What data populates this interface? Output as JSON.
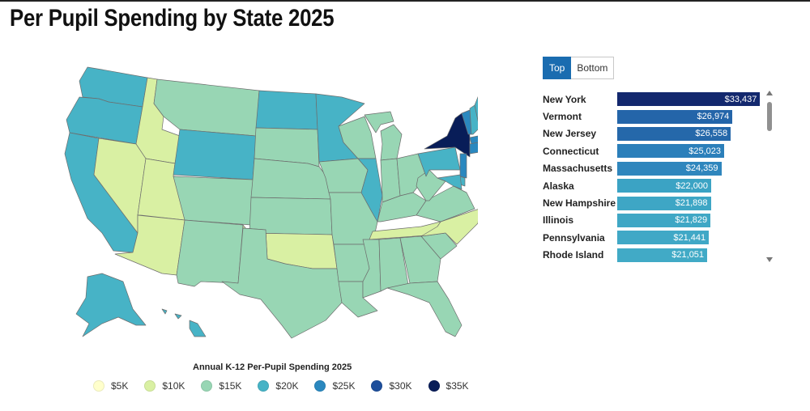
{
  "page": {
    "title": "Per Pupil Spending by State 2025"
  },
  "colors": {
    "s5": "#ffffcc",
    "s10": "#d9f0a3",
    "s15": "#98d6b4",
    "s20": "#47b3c6",
    "s25": "#2a88bf",
    "s30": "#1e4f9b",
    "s35": "#081d58"
  },
  "toggle": {
    "top_label": "Top",
    "bottom_label": "Bottom",
    "selected": "Top"
  },
  "legend": {
    "title": "Annual K-12 Per-Pupil Spending 2025",
    "items": [
      {
        "label": "$5K",
        "color": "#ffffcc"
      },
      {
        "label": "$10K",
        "color": "#d9f0a3"
      },
      {
        "label": "$15K",
        "color": "#98d6b4"
      },
      {
        "label": "$20K",
        "color": "#47b3c6"
      },
      {
        "label": "$25K",
        "color": "#2a88bf"
      },
      {
        "label": "$30K",
        "color": "#1e4f9b"
      },
      {
        "label": "$35K",
        "color": "#081d58"
      }
    ]
  },
  "chart_data": {
    "type": "bar",
    "categories": [
      "New York",
      "Vermont",
      "New Jersey",
      "Connecticut",
      "Massachusetts",
      "Alaska",
      "New Hampshire",
      "Illinois",
      "Pennsylvania",
      "Rhode Island"
    ],
    "values": [
      33437,
      26974,
      26558,
      25023,
      24359,
      22000,
      21898,
      21829,
      21441,
      21051
    ],
    "value_labels": [
      "$33,437",
      "$26,974",
      "$26,558",
      "$25,023",
      "$24,359",
      "$22,000",
      "$21,898",
      "$21,829",
      "$21,441",
      "$21,051"
    ],
    "bar_colors": [
      "#13286e",
      "#2465a9",
      "#2568aa",
      "#2b7fba",
      "#2f86bd",
      "#3ba3c4",
      "#3ea6c5",
      "#3fa7c5",
      "#40a8c6",
      "#41aac6"
    ],
    "xlim": [
      0,
      34500
    ],
    "title": "Per Pupil Spending by State 2025"
  },
  "map": {
    "type": "choropleth",
    "states": [
      {
        "name": "WA",
        "bin": "s20"
      },
      {
        "name": "OR",
        "bin": "s20"
      },
      {
        "name": "CA",
        "bin": "s20"
      },
      {
        "name": "ID",
        "bin": "s10"
      },
      {
        "name": "NV",
        "bin": "s10"
      },
      {
        "name": "UT",
        "bin": "s10"
      },
      {
        "name": "AZ",
        "bin": "s10"
      },
      {
        "name": "MT",
        "bin": "s15"
      },
      {
        "name": "WY",
        "bin": "s20"
      },
      {
        "name": "CO",
        "bin": "s15"
      },
      {
        "name": "NM",
        "bin": "s15"
      },
      {
        "name": "ND",
        "bin": "s20"
      },
      {
        "name": "SD",
        "bin": "s15"
      },
      {
        "name": "NE",
        "bin": "s15"
      },
      {
        "name": "KS",
        "bin": "s15"
      },
      {
        "name": "OK",
        "bin": "s10"
      },
      {
        "name": "TX",
        "bin": "s15"
      },
      {
        "name": "MN",
        "bin": "s20"
      },
      {
        "name": "IA",
        "bin": "s15"
      },
      {
        "name": "MO",
        "bin": "s15"
      },
      {
        "name": "AR",
        "bin": "s15"
      },
      {
        "name": "LA",
        "bin": "s15"
      },
      {
        "name": "WI",
        "bin": "s15"
      },
      {
        "name": "IL",
        "bin": "s20"
      },
      {
        "name": "MI",
        "bin": "s15"
      },
      {
        "name": "IN",
        "bin": "s15"
      },
      {
        "name": "OH",
        "bin": "s15"
      },
      {
        "name": "KY",
        "bin": "s15"
      },
      {
        "name": "TN",
        "bin": "s10"
      },
      {
        "name": "MS",
        "bin": "s15"
      },
      {
        "name": "AL",
        "bin": "s15"
      },
      {
        "name": "GA",
        "bin": "s15"
      },
      {
        "name": "FL",
        "bin": "s15"
      },
      {
        "name": "SC",
        "bin": "s15"
      },
      {
        "name": "NC",
        "bin": "s10"
      },
      {
        "name": "VA",
        "bin": "s15"
      },
      {
        "name": "WV",
        "bin": "s15"
      },
      {
        "name": "PA",
        "bin": "s20"
      },
      {
        "name": "NY",
        "bin": "s35"
      },
      {
        "name": "VT",
        "bin": "s25"
      },
      {
        "name": "NH",
        "bin": "s20"
      },
      {
        "name": "ME",
        "bin": "s20"
      },
      {
        "name": "MA",
        "bin": "s25"
      },
      {
        "name": "CT",
        "bin": "s25"
      },
      {
        "name": "RI",
        "bin": "s20"
      },
      {
        "name": "NJ",
        "bin": "s25"
      },
      {
        "name": "DE",
        "bin": "s20"
      },
      {
        "name": "MD",
        "bin": "s20"
      },
      {
        "name": "AK",
        "bin": "s20"
      },
      {
        "name": "HI",
        "bin": "s20"
      }
    ]
  }
}
